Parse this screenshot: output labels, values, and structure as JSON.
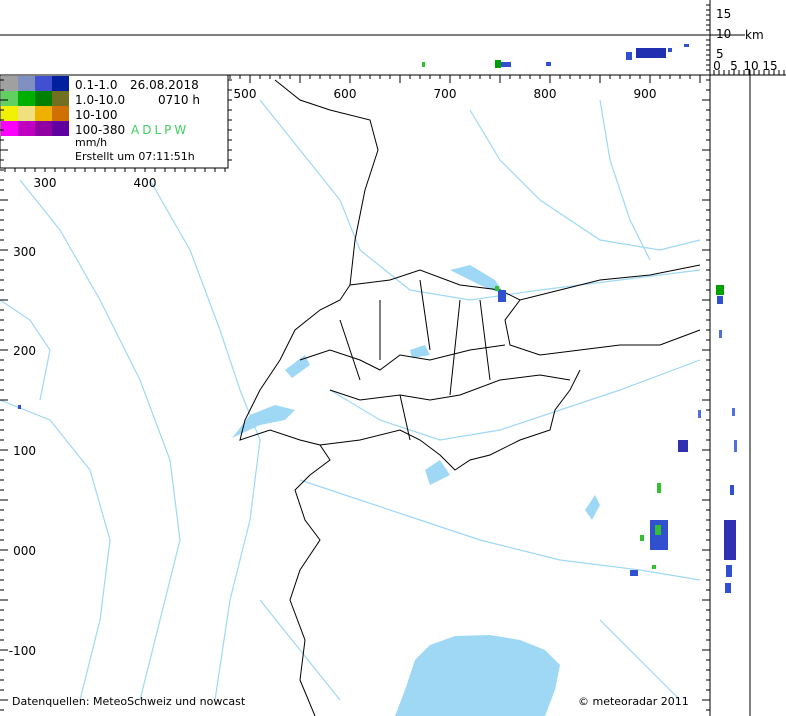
{
  "legend": {
    "classes": [
      "0.1-1.0",
      "1.0-10.0",
      "10-100",
      "100-380"
    ],
    "unit": "mm/h",
    "date": "26.08.2018",
    "time": "0710 h",
    "sources_code": "ADLPW",
    "created": "Erstellt um 07:11:51h"
  },
  "map": {
    "x_labels_top": [
      "500",
      "600",
      "700",
      "800",
      "900"
    ],
    "x_labels_inner": [
      "300",
      "400"
    ],
    "y_labels": [
      "300",
      "200",
      "100",
      "000",
      "-100"
    ]
  },
  "profile": {
    "height_labels": [
      "15",
      "10",
      "5"
    ],
    "unit": "km",
    "distance_labels": [
      "0",
      "5",
      "10",
      "15"
    ]
  },
  "footer": {
    "sources": "Datenquellen: MeteoSchweiz und nowcast",
    "copyright": "© meteoradar 2011"
  }
}
